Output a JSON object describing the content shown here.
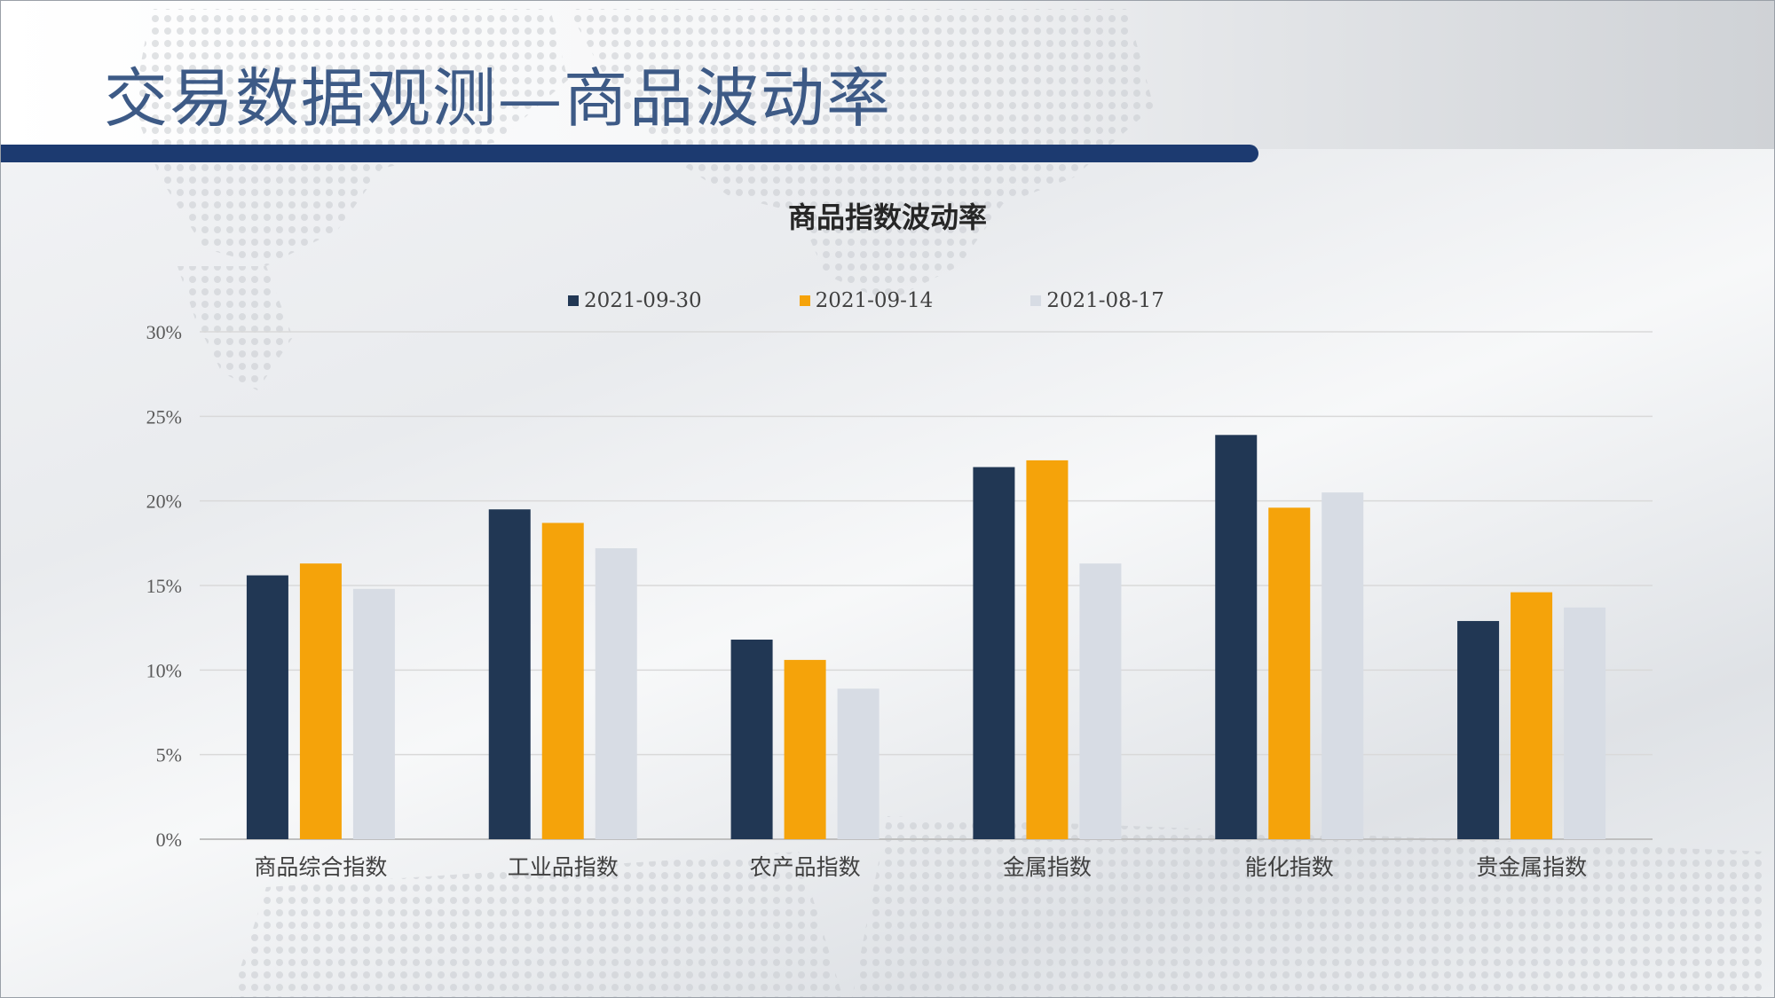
{
  "page": {
    "title": "交易数据观测—商品波动率"
  },
  "chart_data": {
    "type": "bar",
    "title": "商品指数波动率",
    "categories": [
      "商品综合指数",
      "工业品指数",
      "农产品指数",
      "金属指数",
      "能化指数",
      "贵金属指数"
    ],
    "series": [
      {
        "name": "2021-09-30",
        "color": "#213754",
        "values": [
          15.6,
          19.5,
          11.8,
          22.0,
          23.9,
          12.9
        ]
      },
      {
        "name": "2021-09-14",
        "color": "#f5a30a",
        "values": [
          16.3,
          18.7,
          10.6,
          22.4,
          19.6,
          14.6
        ]
      },
      {
        "name": "2021-08-17",
        "color": "#d7dce4",
        "values": [
          14.8,
          17.2,
          8.9,
          16.3,
          20.5,
          13.7
        ]
      }
    ],
    "ylim": [
      0,
      30
    ],
    "yticks": [
      "0%",
      "5%",
      "10%",
      "15%",
      "20%",
      "25%",
      "30%"
    ],
    "ytick_values": [
      0,
      5,
      10,
      15,
      20,
      25,
      30
    ],
    "grid": true,
    "legend": "top-center"
  }
}
